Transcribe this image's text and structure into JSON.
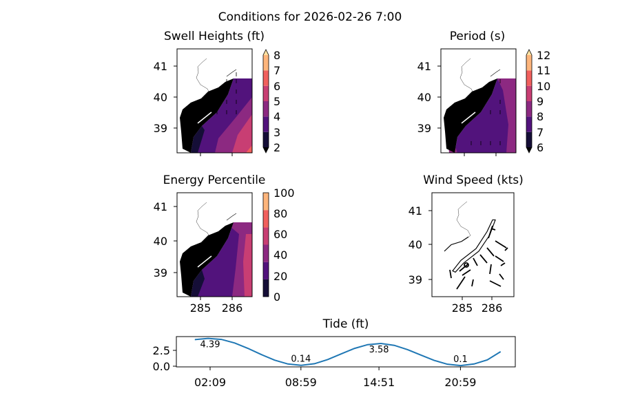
{
  "suptitle": "Conditions for 2026-02-26 7:00",
  "colors": {
    "magma_bands": [
      "#150e37",
      "#52137c",
      "#8c2981",
      "#c83e73",
      "#f1605d",
      "#fdb57c",
      "#fde2a3"
    ],
    "tide_line": "#1f77b4"
  },
  "panels": {
    "swell": {
      "title": "Swell Heights (ft)",
      "lat_ticks": [
        "41",
        "40",
        "39"
      ],
      "colorbar_ticks": [
        "2",
        "3",
        "4",
        "5",
        "6",
        "7",
        "8"
      ],
      "colorbar_extend": "both"
    },
    "period": {
      "title": "Period (s)",
      "lat_ticks": [
        "41",
        "40",
        "39"
      ],
      "colorbar_ticks": [
        "6",
        "7",
        "8",
        "9",
        "10",
        "11",
        "12"
      ],
      "colorbar_extend": "both"
    },
    "energy": {
      "title": "Energy Percentile",
      "lat_ticks": [
        "41",
        "40",
        "39"
      ],
      "lon_ticks": [
        "285",
        "286"
      ],
      "colorbar_ticks": [
        "0",
        "20",
        "40",
        "60",
        "80",
        "100"
      ]
    },
    "wind": {
      "title": "Wind Speed (kts)",
      "lat_ticks": [
        "41",
        "40",
        "39"
      ],
      "lon_ticks": [
        "285",
        "286"
      ]
    }
  },
  "chart_data": {
    "type": "line",
    "title": "Tide (ft)",
    "x_hours": [
      1,
      2,
      3,
      4,
      5,
      6,
      7,
      8,
      9,
      10,
      11,
      12,
      13,
      14,
      15,
      16,
      17,
      18,
      19,
      20,
      21,
      22,
      23,
      24
    ],
    "values": [
      4.2,
      4.39,
      4.23,
      3.66,
      2.81,
      1.84,
      0.96,
      0.35,
      0.14,
      0.39,
      1.05,
      1.94,
      2.8,
      3.4,
      3.58,
      3.29,
      2.62,
      1.76,
      0.92,
      0.31,
      0.1,
      0.35,
      1.0,
      2.3
    ],
    "xticks": [
      {
        "label": "02:09",
        "hour": 2.15
      },
      {
        "label": "08:59",
        "hour": 8.98
      },
      {
        "label": "14:51",
        "hour": 14.85
      },
      {
        "label": "20:59",
        "hour": 20.98
      }
    ],
    "yticks": [
      "0.0",
      "2.5"
    ],
    "annotations": [
      {
        "text": "4.39",
        "hour": 2.15,
        "value": 4.39
      },
      {
        "text": "0.14",
        "hour": 8.98,
        "value": 0.14
      },
      {
        "text": "3.58",
        "hour": 14.85,
        "value": 3.58
      },
      {
        "text": "0.1",
        "hour": 20.98,
        "value": 0.1
      }
    ],
    "grid": false
  }
}
